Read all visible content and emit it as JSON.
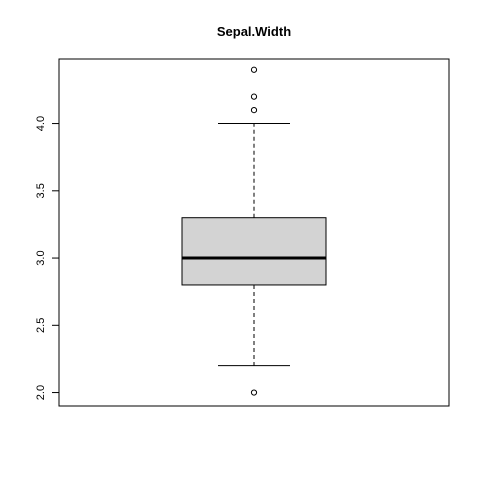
{
  "chart_data": {
    "type": "boxplot",
    "title": "Sepal.Width",
    "xlabel": "",
    "ylabel": "",
    "ylim": [
      1.9,
      4.48
    ],
    "y_ticks": [
      2.0,
      2.5,
      3.0,
      3.5,
      4.0
    ],
    "y_tick_labels": [
      "2.0",
      "2.5",
      "3.0",
      "3.5",
      "4.0"
    ],
    "grid": false,
    "legend": "none",
    "box": {
      "lower_whisker": 2.2,
      "q1": 2.8,
      "median": 3.0,
      "q3": 3.3,
      "upper_whisker": 4.0,
      "outliers": [
        4.4,
        4.2,
        4.1,
        2.0
      ]
    },
    "colors": {
      "box_fill": "#d3d3d3",
      "stroke": "#000000"
    }
  }
}
